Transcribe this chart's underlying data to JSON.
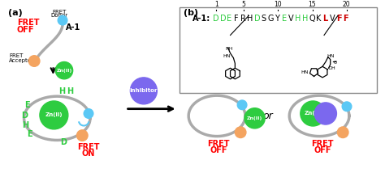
{
  "bg_color": "#ffffff",
  "fret_off_color": "#ff0000",
  "fret_on_color": "#ff0000",
  "donor_color": "#5bc8f5",
  "acceptor_color": "#f4a460",
  "zn_color": "#2ecc40",
  "inhibitor_color": "#7b68ee",
  "curve_color": "#aaaaaa",
  "green_label_color": "#2ecc40",
  "sequence_red": "#cc0000",
  "sequence_green": "#2ecc40",
  "box_orange": "#e07040",
  "box_blue": "#4488cc",
  "seq_letters": [
    "D",
    "D",
    "E",
    "F",
    "R",
    "H",
    "D",
    "S",
    "G",
    "Y",
    "E",
    "V",
    "H",
    "H",
    "Q",
    "K",
    "L",
    "V",
    "F",
    "F"
  ],
  "seq_colors": [
    "#2ecc40",
    "#2ecc40",
    "#2ecc40",
    "#000000",
    "#000000",
    "#000000",
    "#2ecc40",
    "#000000",
    "#000000",
    "#000000",
    "#2ecc40",
    "#000000",
    "#2ecc40",
    "#2ecc40",
    "#000000",
    "#000000",
    "#cc0000",
    "#000000",
    "#cc0000",
    "#cc0000"
  ]
}
